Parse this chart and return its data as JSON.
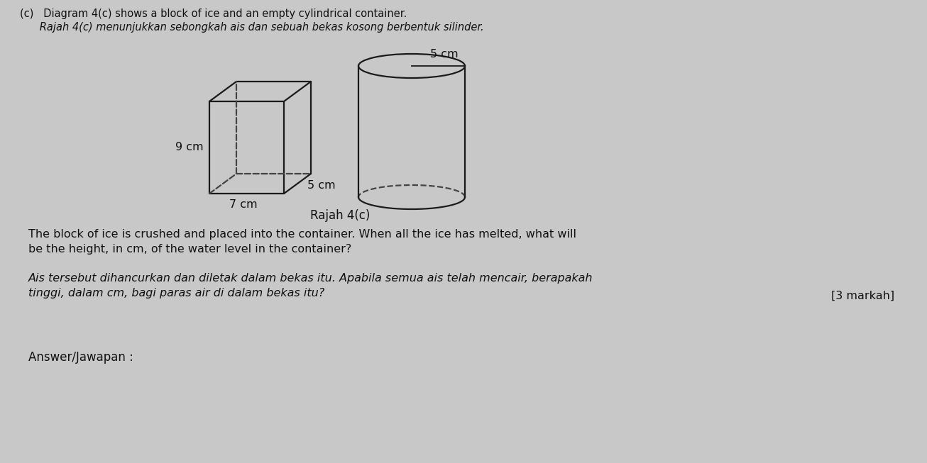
{
  "bg_color": "#c8c8c8",
  "title_line1": "(c)   Diagram 4(c) shows a block of ice and an empty cylindrical container.",
  "title_line2": "      Rajah 4(c) menunjukkan sebongkah ais dan sebuah bekas kosong berbentuk silinder.",
  "diagram_label": "Rajah 4(c)",
  "ice_label_9cm": "9 cm",
  "ice_label_7cm": "7 cm",
  "ice_label_5cm": "5 cm",
  "cyl_label_5cm": "5 cm",
  "para1_en": "The block of ice is crushed and placed into the container. When all the ice has melted, what will\nbe the height, in cm, of the water level in the container?",
  "para1_ms": "Ais tersebut dihancurkan dan diletak dalam bekas itu. Apabila semua ais telah mencair, berapakah\ntinggi, dalam cm, bagi paras air di dalam bekas itu?",
  "marks": "[3 markah]",
  "answer_label": "Answer/Jawapan :",
  "line_color": "#1a1a1a",
  "dashed_color": "#444444",
  "text_color": "#111111"
}
